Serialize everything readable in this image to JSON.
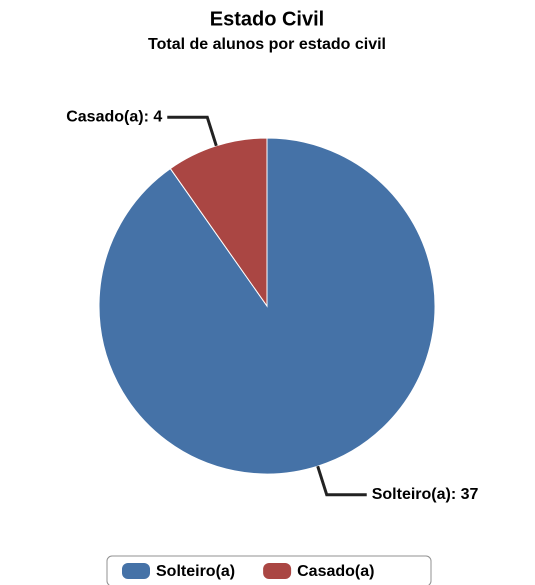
{
  "chart_data": {
    "type": "pie",
    "title": "Estado Civil",
    "subtitle": "Total de alunos por estado civil",
    "categories": [
      "Solteiro(a)",
      "Casado(a)"
    ],
    "values": [
      37,
      4
    ],
    "value_labels": [
      "Solteiro(a): 37",
      "Casado(a): 4"
    ],
    "colors": [
      "#4572a7",
      "#aa4643"
    ],
    "legend": "bottom"
  }
}
